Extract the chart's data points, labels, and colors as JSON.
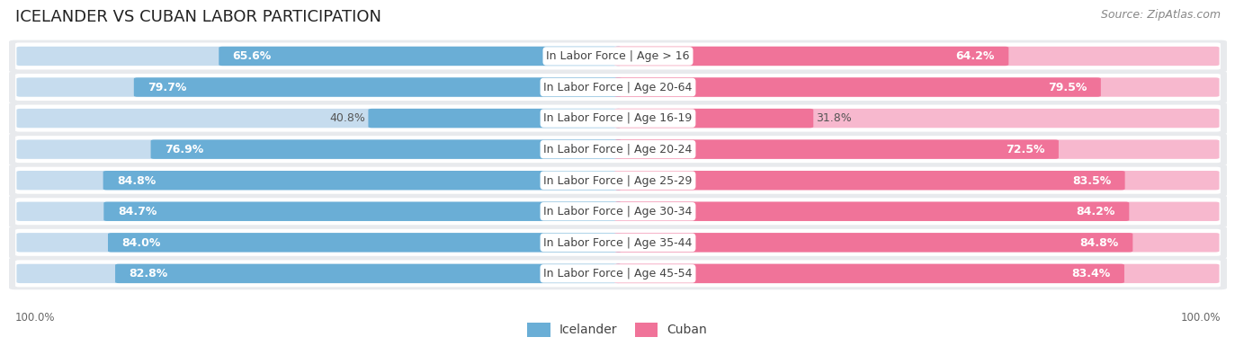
{
  "title": "ICELANDER VS CUBAN LABOR PARTICIPATION",
  "source": "Source: ZipAtlas.com",
  "categories": [
    "In Labor Force | Age > 16",
    "In Labor Force | Age 20-64",
    "In Labor Force | Age 16-19",
    "In Labor Force | Age 20-24",
    "In Labor Force | Age 25-29",
    "In Labor Force | Age 30-34",
    "In Labor Force | Age 35-44",
    "In Labor Force | Age 45-54"
  ],
  "icelander_values": [
    65.6,
    79.7,
    40.8,
    76.9,
    84.8,
    84.7,
    84.0,
    82.8
  ],
  "cuban_values": [
    64.2,
    79.5,
    31.8,
    72.5,
    83.5,
    84.2,
    84.8,
    83.4
  ],
  "icelander_color": "#6aaed6",
  "icelander_color_light": "#c6dcee",
  "cuban_color": "#f07399",
  "cuban_color_light": "#f7b8ce",
  "row_bg_color": "#e8eaed",
  "title_fontsize": 13,
  "source_fontsize": 9,
  "legend_fontsize": 10,
  "value_fontsize": 9,
  "category_fontsize": 9,
  "max_value": 100.0,
  "footer_label": "100.0%",
  "legend_icelander": "Icelander",
  "legend_cuban": "Cuban"
}
